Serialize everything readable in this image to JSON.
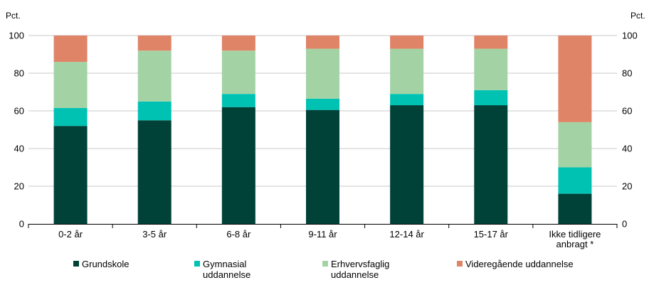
{
  "chart_data": {
    "type": "bar",
    "stacked": true,
    "y_unit_left": "Pct.",
    "y_unit_right": "Pct.",
    "ylim": [
      0,
      100
    ],
    "yticks": [
      0,
      20,
      40,
      60,
      80,
      100
    ],
    "grid": true,
    "categories": [
      [
        "0-2 år"
      ],
      [
        "3-5 år"
      ],
      [
        "6-8 år"
      ],
      [
        "9-11 år"
      ],
      [
        "12-14 år"
      ],
      [
        "15-17 år"
      ],
      [
        "Ikke tidligere",
        "anbragt *"
      ]
    ],
    "series": [
      {
        "name": [
          "Grundskole"
        ],
        "color": "#004238",
        "values": [
          52,
          55,
          62,
          60.5,
          63,
          63,
          16
        ]
      },
      {
        "name": [
          "Gymnasial",
          "uddannelse"
        ],
        "color": "#00c2b3",
        "values": [
          9.5,
          10,
          7,
          6,
          6,
          8,
          14
        ]
      },
      {
        "name": [
          "Erhvervsfaglig",
          "uddannelse"
        ],
        "color": "#a3d3a5",
        "values": [
          24.5,
          27,
          23,
          26.5,
          24,
          22,
          24
        ]
      },
      {
        "name": [
          "Videregående uddannelse"
        ],
        "color": "#e08468",
        "values": [
          14,
          8,
          8,
          7,
          7,
          7,
          46
        ]
      }
    ],
    "legend_position": "bottom"
  }
}
